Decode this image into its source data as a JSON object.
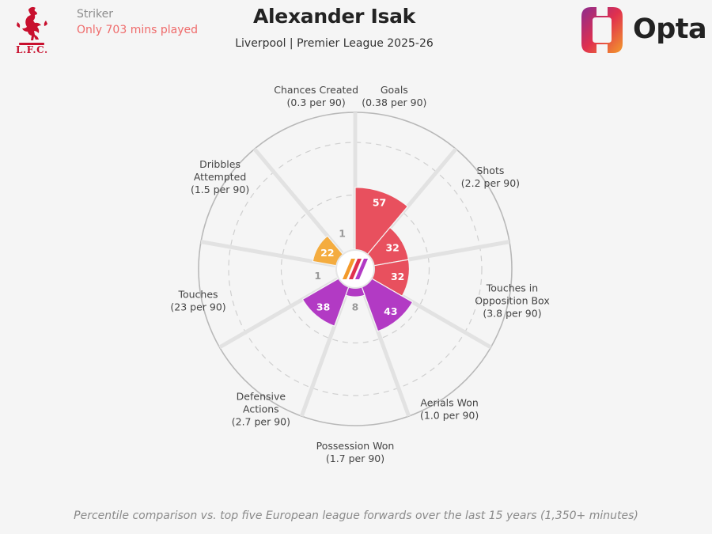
{
  "header": {
    "position": "Striker",
    "minutes_note": "Only 703 mins played",
    "player_name": "Alexander Isak",
    "subtitle": "Liverpool | Premier League 2025-26",
    "club_crest_text": "L.F.C.",
    "brand": "Opta"
  },
  "colors": {
    "attacking": "#e8505e",
    "possession": "#f4ac3f",
    "defending": "#b23ac4",
    "grid": "#d6d6d6",
    "accent_red": "#ef6b6b"
  },
  "chart_data": {
    "type": "radar",
    "scale": [
      0,
      100
    ],
    "metrics": [
      {
        "label": "Goals",
        "sub": "(0.38 per 90)",
        "percentile": 57,
        "group": "attacking"
      },
      {
        "label": "Shots",
        "sub": "(2.2 per 90)",
        "percentile": 32,
        "group": "attacking"
      },
      {
        "label": "Touches in Opposition Box",
        "label_lines": [
          "Touches in",
          "Opposition Box"
        ],
        "sub": "(3.8 per 90)",
        "percentile": 32,
        "group": "attacking"
      },
      {
        "label": "Aerials Won",
        "sub": "(1.0 per 90)",
        "percentile": 43,
        "group": "defending"
      },
      {
        "label": "Possession Won",
        "sub": "(1.7 per 90)",
        "percentile": 8,
        "group": "defending"
      },
      {
        "label": "Defensive Actions",
        "label_lines": [
          "Defensive",
          "Actions"
        ],
        "sub": "(2.7 per 90)",
        "percentile": 38,
        "group": "defending"
      },
      {
        "label": "Touches",
        "sub": "(23 per 90)",
        "percentile": 1,
        "group": "possession"
      },
      {
        "label": "Dribbles Attempted",
        "label_lines": [
          "Dribbles",
          "Attempted"
        ],
        "sub": "(1.5 per 90)",
        "percentile": 22,
        "group": "possession"
      },
      {
        "label": "Chances Created",
        "sub": "(0.3 per 90)",
        "percentile": 1,
        "group": "possession"
      }
    ]
  },
  "footnote": "Percentile comparison vs. top five European league forwards over the last 15 years (1,350+ minutes)"
}
